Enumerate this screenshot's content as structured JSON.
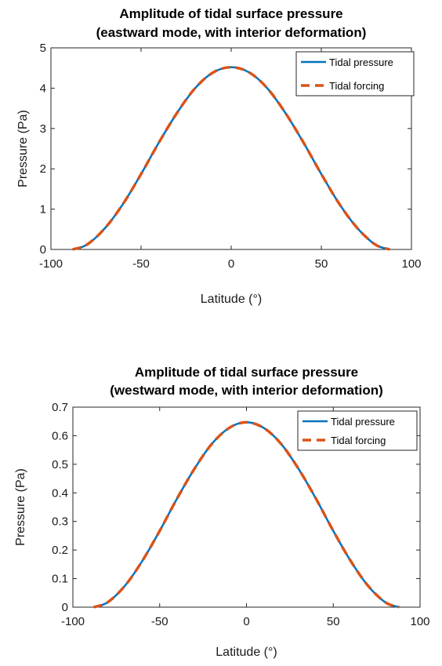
{
  "chart_data": [
    {
      "type": "line",
      "title": [
        "Amplitude of tidal surface pressure",
        "(eastward mode, with interior deformation)"
      ],
      "xlabel": "Latitude (°)",
      "ylabel": "Pressure (Pa)",
      "xlim": [
        -100,
        100
      ],
      "ylim": [
        0,
        5
      ],
      "xticks": [
        -100,
        -50,
        0,
        50,
        100
      ],
      "yticks": [
        0,
        1,
        2,
        3,
        4,
        5
      ],
      "xtick_labels": [
        "-100",
        "-50",
        "0",
        "50",
        "100"
      ],
      "ytick_labels": [
        "0",
        "1",
        "2",
        "3",
        "4",
        "5"
      ],
      "grid": false,
      "legend_position": "top-right",
      "series": [
        {
          "name": "Tidal pressure",
          "color": "#0072BD",
          "style": "solid",
          "x": [
            -88,
            -80,
            -70,
            -60,
            -50,
            -40,
            -30,
            -20,
            -10,
            0,
            10,
            20,
            30,
            40,
            50,
            60,
            70,
            80,
            88
          ],
          "y": [
            0.0,
            0.12,
            0.53,
            1.13,
            1.87,
            2.66,
            3.39,
            4.0,
            4.39,
            4.52,
            4.39,
            4.0,
            3.39,
            2.66,
            1.87,
            1.13,
            0.53,
            0.12,
            0.0
          ]
        },
        {
          "name": "Tidal forcing",
          "color": "#D95319",
          "style": "dashed",
          "x": [
            -88,
            -80,
            -70,
            -60,
            -50,
            -40,
            -30,
            -20,
            -10,
            0,
            10,
            20,
            30,
            40,
            50,
            60,
            70,
            80,
            88
          ],
          "y": [
            0.0,
            0.12,
            0.53,
            1.13,
            1.87,
            2.66,
            3.39,
            4.0,
            4.39,
            4.52,
            4.39,
            4.0,
            3.39,
            2.66,
            1.87,
            1.13,
            0.53,
            0.12,
            0.0
          ]
        }
      ]
    },
    {
      "type": "line",
      "title": [
        "Amplitude of tidal surface pressure",
        "(westward mode, with interior deformation)"
      ],
      "xlabel": "Latitude (°)",
      "ylabel": "Pressure (Pa)",
      "xlim": [
        -100,
        100
      ],
      "ylim": [
        0,
        0.7
      ],
      "xticks": [
        -100,
        -50,
        0,
        50,
        100
      ],
      "yticks": [
        0,
        0.1,
        0.2,
        0.3,
        0.4,
        0.5,
        0.6,
        0.7
      ],
      "xtick_labels": [
        "-100",
        "-50",
        "0",
        "50",
        "100"
      ],
      "ytick_labels": [
        "0",
        "0.1",
        "0.2",
        "0.3",
        "0.4",
        "0.5",
        "0.6",
        "0.7"
      ],
      "grid": false,
      "legend_position": "top-right",
      "series": [
        {
          "name": "Tidal pressure",
          "color": "#0072BD",
          "style": "solid",
          "x": [
            -88,
            -80,
            -70,
            -60,
            -50,
            -40,
            -30,
            -20,
            -10,
            0,
            10,
            20,
            30,
            40,
            50,
            60,
            70,
            80,
            88
          ],
          "y": [
            0.0,
            0.017,
            0.075,
            0.162,
            0.267,
            0.38,
            0.484,
            0.571,
            0.627,
            0.647,
            0.627,
            0.571,
            0.484,
            0.38,
            0.267,
            0.162,
            0.075,
            0.017,
            0.0
          ]
        },
        {
          "name": "Tidal forcing",
          "color": "#D95319",
          "style": "dashed",
          "x": [
            -88,
            -80,
            -70,
            -60,
            -50,
            -40,
            -30,
            -20,
            -10,
            0,
            10,
            20,
            30,
            40,
            50,
            60,
            70,
            80,
            88
          ],
          "y": [
            0.0,
            0.017,
            0.075,
            0.162,
            0.267,
            0.38,
            0.484,
            0.571,
            0.627,
            0.647,
            0.627,
            0.571,
            0.484,
            0.38,
            0.267,
            0.162,
            0.075,
            0.017,
            0.0
          ]
        }
      ]
    }
  ]
}
